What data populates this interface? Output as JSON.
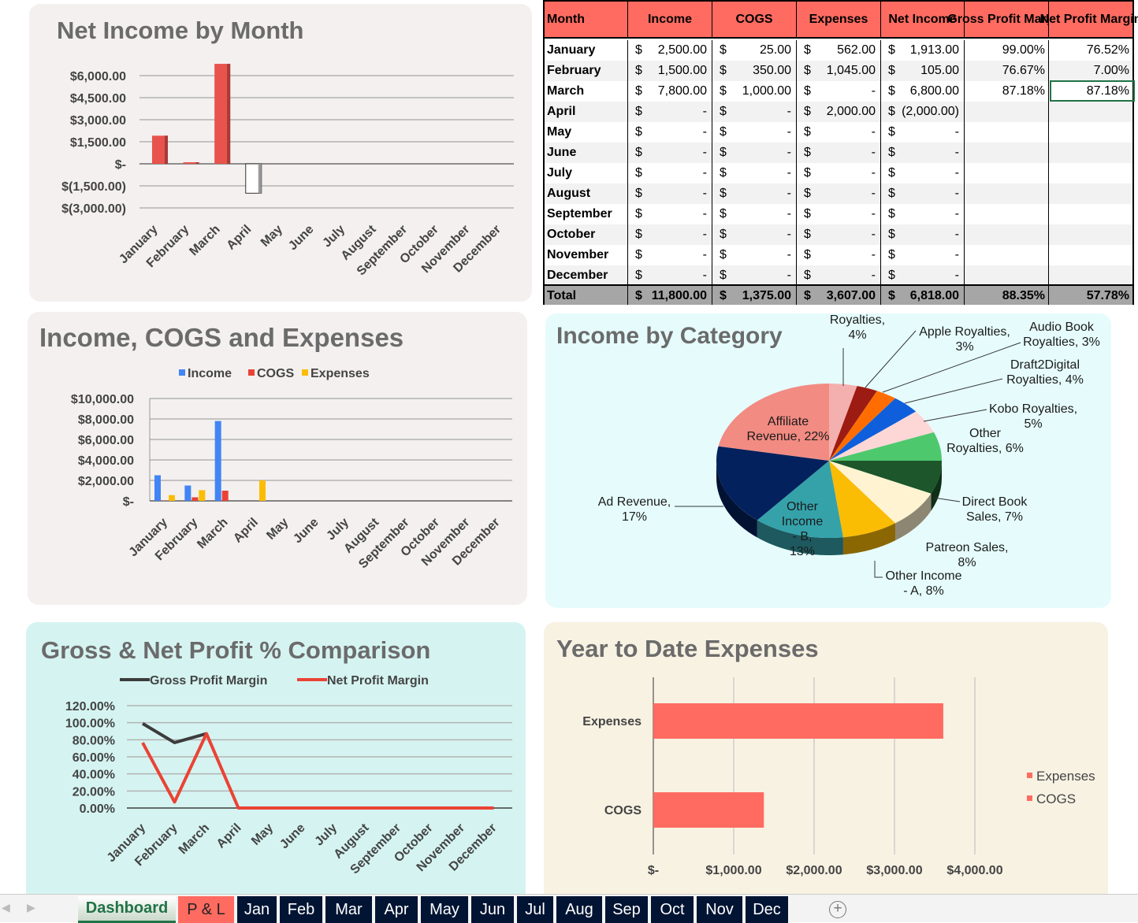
{
  "months": [
    "January",
    "February",
    "March",
    "April",
    "May",
    "June",
    "July",
    "August",
    "September",
    "October",
    "November",
    "December"
  ],
  "net_income_chart": {
    "title": "Net Income by Month",
    "type": "bar",
    "ylim": [
      -3000,
      7500
    ],
    "yticks": [
      "$6,000.00",
      "$4,500.00",
      "$3,000.00",
      "$1,500.00",
      "$-",
      "$(1,500.00)",
      "$(3,000.00)"
    ],
    "ytick_values": [
      6000,
      4500,
      3000,
      1500,
      0,
      -1500,
      -3000
    ],
    "values": [
      1913,
      105,
      6800,
      -2000,
      0,
      0,
      0,
      0,
      0,
      0,
      0,
      0
    ],
    "colors": {
      "positive": "#e8534d",
      "negative": "#ffffff"
    }
  },
  "table": {
    "headers": [
      "Month",
      "Income",
      "COGS",
      "Expenses",
      "Net Income",
      "Gross Profit Margin",
      "Net Profit Margin"
    ],
    "rows": [
      [
        "January",
        "2,500.00",
        "25.00",
        "562.00",
        "1,913.00",
        "99.00%",
        "76.52%"
      ],
      [
        "February",
        "1,500.00",
        "350.00",
        "1,045.00",
        "105.00",
        "76.67%",
        "7.00%"
      ],
      [
        "March",
        "7,800.00",
        "1,000.00",
        "-",
        "6,800.00",
        "87.18%",
        "87.18%"
      ],
      [
        "April",
        "-",
        "-",
        "2,000.00",
        "(2,000.00)",
        "",
        ""
      ],
      [
        "May",
        "-",
        "-",
        "-",
        "-",
        "",
        ""
      ],
      [
        "June",
        "-",
        "-",
        "-",
        "-",
        "",
        ""
      ],
      [
        "July",
        "-",
        "-",
        "-",
        "-",
        "",
        ""
      ],
      [
        "August",
        "-",
        "-",
        "-",
        "-",
        "",
        ""
      ],
      [
        "September",
        "-",
        "-",
        "-",
        "-",
        "",
        ""
      ],
      [
        "October",
        "-",
        "-",
        "-",
        "-",
        "",
        ""
      ],
      [
        "November",
        "-",
        "-",
        "-",
        "-",
        "",
        ""
      ],
      [
        "December",
        "-",
        "-",
        "-",
        "-",
        "",
        ""
      ]
    ],
    "total": [
      "Total",
      "11,800.00",
      "1,375.00",
      "3,607.00",
      "6,818.00",
      "88.35%",
      "57.78%"
    ],
    "currency_symbol": "$",
    "header_color": "#ff6b61"
  },
  "ice_chart": {
    "title": "Income, COGS and Expenses",
    "type": "bar",
    "ylim": [
      0,
      10000
    ],
    "yticks": [
      "$10,000.00",
      "$8,000.00",
      "$6,000.00",
      "$4,000.00",
      "$2,000.00",
      "$-"
    ],
    "ytick_values": [
      10000,
      8000,
      6000,
      4000,
      2000,
      0
    ],
    "series": [
      {
        "name": "Income",
        "color": "#4285f4",
        "values": [
          2500,
          1500,
          7800,
          0,
          0,
          0,
          0,
          0,
          0,
          0,
          0,
          0
        ]
      },
      {
        "name": "COGS",
        "color": "#ea4335",
        "values": [
          25,
          350,
          1000,
          0,
          0,
          0,
          0,
          0,
          0,
          0,
          0,
          0
        ]
      },
      {
        "name": "Expenses",
        "color": "#fbbc04",
        "values": [
          562,
          1045,
          0,
          2000,
          0,
          0,
          0,
          0,
          0,
          0,
          0,
          0
        ]
      }
    ]
  },
  "pie": {
    "title": "Income by Category",
    "type": "pie",
    "slices": [
      {
        "name": "Royalties",
        "pct": 4,
        "color": "#f4b0ae",
        "label": "Royalties,\n4%"
      },
      {
        "name": "Apple Royalties",
        "pct": 3,
        "color": "#9c1b12",
        "label": "Apple Royalties,\n3%"
      },
      {
        "name": "Audio Book Royalties",
        "pct": 3,
        "color": "#ff6d01",
        "label": "Audio Book\nRoyalties, 3%"
      },
      {
        "name": "Draft2Digital Royalties",
        "pct": 4,
        "color": "#0f5fdc",
        "label": "Draft2Digital\nRoyalties, 4%"
      },
      {
        "name": "Kobo Royalties",
        "pct": 5,
        "color": "#fcd7d6",
        "label": "Kobo Royalties,\n5%"
      },
      {
        "name": "Other Royalties",
        "pct": 6,
        "color": "#4ec86d",
        "label": "Other\nRoyalties, 6%"
      },
      {
        "name": "Direct Book Sales",
        "pct": 7,
        "color": "#1c562a",
        "label": "Direct Book\nSales, 7%"
      },
      {
        "name": "Patreon Sales",
        "pct": 8,
        "color": "#fff3d1",
        "label": "Patreon Sales,\n8%"
      },
      {
        "name": "Other Income - A",
        "pct": 8,
        "color": "#fbbc04",
        "label": "Other Income\n- A, 8%"
      },
      {
        "name": "Other Income - B",
        "pct": 13,
        "color": "#35a2aa",
        "label": "Other\nIncome\n- B,\n13%"
      },
      {
        "name": "Ad Revenue",
        "pct": 17,
        "color": "#03215d",
        "label": "Ad Revenue,\n17%"
      },
      {
        "name": "Affiliate Revenue",
        "pct": 22,
        "color": "#f28b82",
        "label": "Affiliate\nRevenue, 22%"
      }
    ]
  },
  "margin_chart": {
    "title": "Gross & Net Profit % Comparison",
    "type": "line",
    "ylim": [
      0,
      120
    ],
    "yticks": [
      "120.00%",
      "100.00%",
      "80.00%",
      "60.00%",
      "40.00%",
      "20.00%",
      "0.00%"
    ],
    "ytick_values": [
      120,
      100,
      80,
      60,
      40,
      20,
      0
    ],
    "series": [
      {
        "name": "Gross Profit Margin",
        "color": "#3c3c3c",
        "values": [
          99,
          76.67,
          87.18
        ]
      },
      {
        "name": "Net Profit Margin",
        "color": "#ea4335",
        "values": [
          76.52,
          7,
          87.18,
          0,
          0,
          0,
          0,
          0,
          0,
          0,
          0,
          0
        ]
      }
    ]
  },
  "ytd_chart": {
    "title": "Year to Date Expenses",
    "type": "bar",
    "orientation": "horizontal",
    "categories": [
      "Expenses",
      "COGS"
    ],
    "values": [
      3607,
      1375
    ],
    "xlim": [
      0,
      4500
    ],
    "xticks": [
      "$-",
      "$1,000.00",
      "$2,000.00",
      "$3,000.00",
      "$4,000.00"
    ],
    "xtick_values": [
      0,
      1000,
      2000,
      3000,
      4000
    ],
    "color": "#ff6b61",
    "legend": [
      "Expenses",
      "COGS"
    ]
  },
  "sheet_tabs": [
    {
      "label": "Dashboard",
      "active": true
    },
    {
      "label": "P & L",
      "color": "#ff6b61"
    },
    {
      "label": "Jan"
    },
    {
      "label": "Feb"
    },
    {
      "label": "Mar"
    },
    {
      "label": "Apr"
    },
    {
      "label": "May"
    },
    {
      "label": "Jun"
    },
    {
      "label": "Jul"
    },
    {
      "label": "Aug"
    },
    {
      "label": "Sep"
    },
    {
      "label": "Oct"
    },
    {
      "label": "Nov"
    },
    {
      "label": "Dec"
    }
  ],
  "add_sheet_icon": "plus-circle-icon"
}
